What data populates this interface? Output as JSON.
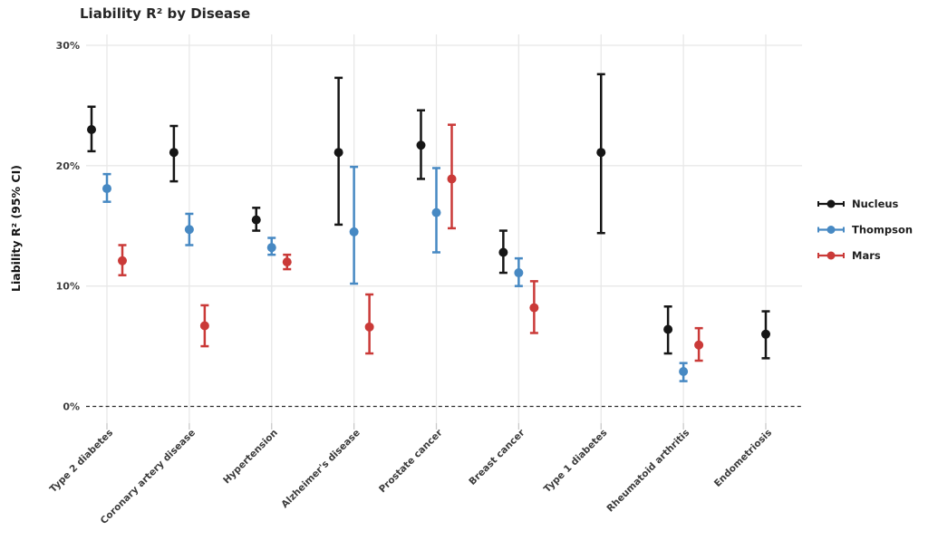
{
  "chart_data": {
    "type": "scatter",
    "subtype": "dot-with-95ci-errorbars",
    "title": "Liability R² by Disease",
    "xlabel": "",
    "ylabel": "Liability R² (95% CI)",
    "ylim": [
      -1.5,
      31
    ],
    "y_ticks": [
      {
        "value": 0,
        "label": "0%"
      },
      {
        "value": 10,
        "label": "10%"
      },
      {
        "value": 20,
        "label": "20%"
      },
      {
        "value": 30,
        "label": "30%"
      }
    ],
    "x_tick_rotation": 45,
    "grid": true,
    "zero_line_dashed": true,
    "legend_position": "right",
    "categories": [
      "Type 2 diabetes",
      "Coronary artery disease",
      "Hypertension",
      "Alzheimer's disease",
      "Prostate cancer",
      "Breast cancer",
      "Type 1 diabetes",
      "Rheumatoid arthritis",
      "Endometriosis"
    ],
    "series": [
      {
        "name": "Nucleus",
        "color": "#161616",
        "values": [
          {
            "v": 23.0,
            "lo": 21.2,
            "hi": 24.9
          },
          {
            "v": 21.1,
            "lo": 18.7,
            "hi": 23.3
          },
          {
            "v": 15.5,
            "lo": 14.6,
            "hi": 16.5
          },
          {
            "v": 21.1,
            "lo": 15.1,
            "hi": 27.3
          },
          {
            "v": 21.7,
            "lo": 18.9,
            "hi": 24.6
          },
          {
            "v": 12.8,
            "lo": 11.1,
            "hi": 14.6
          },
          {
            "v": 21.1,
            "lo": 14.4,
            "hi": 27.6
          },
          {
            "v": 6.4,
            "lo": 4.4,
            "hi": 8.3
          },
          {
            "v": 6.0,
            "lo": 4.0,
            "hi": 7.9
          }
        ]
      },
      {
        "name": "Thompson",
        "color": "#4789c3",
        "values": [
          {
            "v": 18.1,
            "lo": 17.0,
            "hi": 19.3
          },
          {
            "v": 14.7,
            "lo": 13.4,
            "hi": 16.0
          },
          {
            "v": 13.2,
            "lo": 12.6,
            "hi": 14.0
          },
          {
            "v": 14.5,
            "lo": 10.2,
            "hi": 19.9
          },
          {
            "v": 16.1,
            "lo": 12.8,
            "hi": 19.8
          },
          {
            "v": 11.1,
            "lo": 10.0,
            "hi": 12.3
          },
          null,
          {
            "v": 2.9,
            "lo": 2.1,
            "hi": 3.6
          },
          null
        ]
      },
      {
        "name": "Mars",
        "color": "#ca3a38",
        "values": [
          {
            "v": 12.1,
            "lo": 10.9,
            "hi": 13.4
          },
          {
            "v": 6.7,
            "lo": 5.0,
            "hi": 8.4
          },
          {
            "v": 12.0,
            "lo": 11.4,
            "hi": 12.6
          },
          {
            "v": 6.6,
            "lo": 4.4,
            "hi": 9.3
          },
          {
            "v": 18.9,
            "lo": 14.8,
            "hi": 23.4
          },
          {
            "v": 8.2,
            "lo": 6.1,
            "hi": 10.4
          },
          null,
          {
            "v": 5.1,
            "lo": 3.8,
            "hi": 6.5
          },
          null
        ]
      }
    ]
  }
}
